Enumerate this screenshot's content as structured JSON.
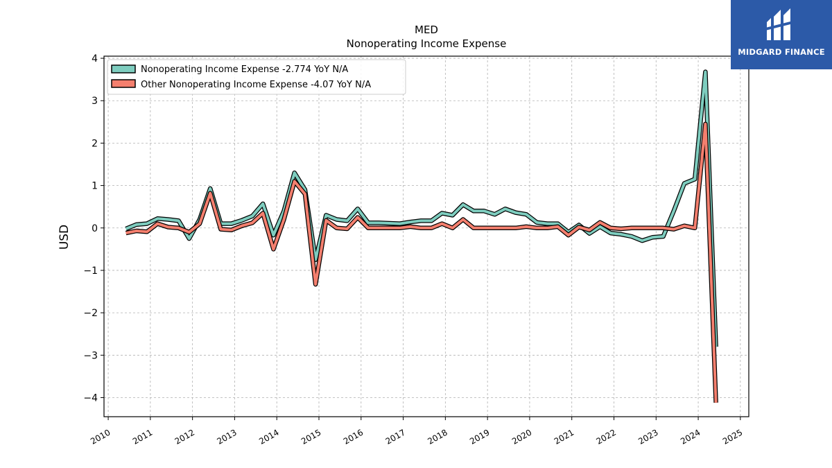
{
  "logo": {
    "text": "MIDGARD FINANCE"
  },
  "chart_data": {
    "type": "line",
    "title": "MED",
    "subtitle": "Nonoperating Income Expense",
    "ylabel": "USD",
    "xlim": [
      2009.9,
      2025.2
    ],
    "ylim": [
      -4.45,
      4.05
    ],
    "yticks": [
      -4,
      -3,
      -2,
      -1,
      0,
      1,
      2,
      3,
      4
    ],
    "ytick_labels": [
      "−4",
      "−3",
      "−2",
      "−1",
      "0",
      "1",
      "2",
      "3",
      "4"
    ],
    "xticks": [
      2010,
      2011,
      2012,
      2013,
      2014,
      2015,
      2016,
      2017,
      2018,
      2019,
      2020,
      2021,
      2022,
      2023,
      2024,
      2025
    ],
    "xtick_labels": [
      "2010",
      "2011",
      "2012",
      "2013",
      "2014",
      "2015",
      "2016",
      "2017",
      "2018",
      "2019",
      "2020",
      "2021",
      "2022",
      "2023",
      "2024",
      "2025"
    ],
    "grid": true,
    "legend_position": "top-left",
    "series": [
      {
        "name": "Nonoperating Income Expense",
        "legend_label": "Nonoperating Income Expense  -2.774 YoY N/A",
        "color": "#7ecdbf",
        "x": [
          2010.42,
          2010.67,
          2010.92,
          2011.17,
          2011.42,
          2011.67,
          2011.92,
          2012.17,
          2012.42,
          2012.67,
          2012.92,
          2013.17,
          2013.42,
          2013.67,
          2013.92,
          2014.17,
          2014.42,
          2014.67,
          2014.92,
          2015.17,
          2015.42,
          2015.67,
          2015.92,
          2016.17,
          2016.42,
          2016.67,
          2016.92,
          2017.17,
          2017.42,
          2017.67,
          2017.92,
          2018.17,
          2018.42,
          2018.67,
          2018.92,
          2019.17,
          2019.42,
          2019.67,
          2019.92,
          2020.17,
          2020.42,
          2020.67,
          2020.92,
          2021.17,
          2021.42,
          2021.67,
          2021.92,
          2022.17,
          2022.42,
          2022.67,
          2022.92,
          2023.17,
          2023.42,
          2023.67,
          2023.92,
          2024.17,
          2024.42
        ],
        "y": [
          -0.02,
          0.08,
          0.1,
          0.22,
          0.2,
          0.17,
          -0.25,
          0.2,
          0.93,
          0.1,
          0.1,
          0.18,
          0.28,
          0.57,
          -0.17,
          0.4,
          1.3,
          0.9,
          -0.75,
          0.3,
          0.2,
          0.17,
          0.45,
          0.12,
          0.12,
          0.11,
          0.1,
          0.14,
          0.17,
          0.17,
          0.35,
          0.3,
          0.55,
          0.4,
          0.4,
          0.32,
          0.45,
          0.36,
          0.32,
          0.13,
          0.1,
          0.1,
          -0.1,
          0.07,
          -0.13,
          0.03,
          -0.12,
          -0.15,
          -0.2,
          -0.3,
          -0.22,
          -0.2,
          0.4,
          1.05,
          1.15,
          3.68,
          -2.8
        ]
      },
      {
        "name": "Other Nonoperating Income Expense",
        "legend_label": "Other Nonoperating Income Expense  -4.07 YoY N/A",
        "color": "#f47f6e",
        "x": [
          2010.42,
          2010.67,
          2010.92,
          2011.17,
          2011.42,
          2011.67,
          2011.92,
          2012.17,
          2012.42,
          2012.67,
          2012.92,
          2013.17,
          2013.42,
          2013.67,
          2013.92,
          2014.17,
          2014.42,
          2014.67,
          2014.92,
          2015.17,
          2015.42,
          2015.67,
          2015.92,
          2016.17,
          2016.42,
          2016.67,
          2016.92,
          2017.17,
          2017.42,
          2017.67,
          2017.92,
          2018.17,
          2018.42,
          2018.67,
          2018.92,
          2019.17,
          2019.42,
          2019.67,
          2019.92,
          2020.17,
          2020.42,
          2020.67,
          2020.92,
          2021.17,
          2021.42,
          2021.67,
          2021.92,
          2022.17,
          2022.42,
          2022.67,
          2022.92,
          2023.17,
          2023.42,
          2023.67,
          2023.92,
          2024.17,
          2024.42
        ],
        "y": [
          -0.12,
          -0.07,
          -0.09,
          0.1,
          0.02,
          0.0,
          -0.1,
          0.1,
          0.82,
          -0.03,
          -0.05,
          0.05,
          0.12,
          0.35,
          -0.5,
          0.2,
          1.1,
          0.8,
          -1.33,
          0.18,
          0.0,
          -0.02,
          0.25,
          0.0,
          0.0,
          0.0,
          0.0,
          0.03,
          0.0,
          0.0,
          0.1,
          0.0,
          0.2,
          0.0,
          0.0,
          0.0,
          0.0,
          0.0,
          0.03,
          0.0,
          0.0,
          0.03,
          -0.17,
          0.02,
          -0.05,
          0.13,
          0.0,
          -0.02,
          0.0,
          0.0,
          0.0,
          0.0,
          -0.03,
          0.05,
          0.0,
          2.45,
          -4.12
        ]
      }
    ]
  }
}
